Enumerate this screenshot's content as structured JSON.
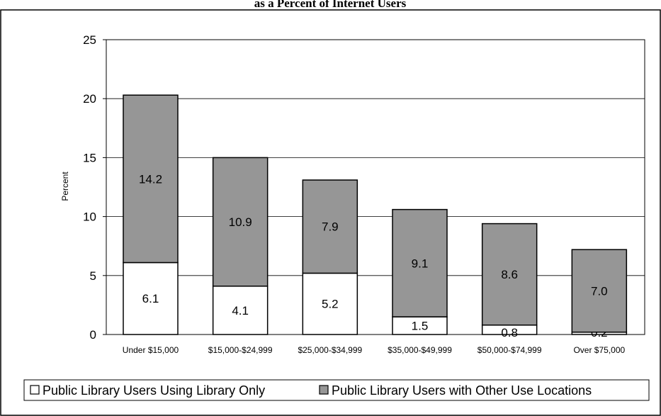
{
  "chart_data": {
    "type": "bar",
    "stacked": true,
    "title": "as a Percent of Internet Users",
    "ylabel": "Percent",
    "xlabel": "",
    "ylim": [
      0,
      25
    ],
    "yticks": [
      "0",
      "5",
      "10",
      "15",
      "20",
      "25"
    ],
    "grid": true,
    "legend_position": "bottom",
    "categories": [
      "Under $15,000",
      "$15,000-$24,999",
      "$25,000-$34,999",
      "$35,000-$49,999",
      "$50,000-$74,999",
      "Over $75,000"
    ],
    "series": [
      {
        "name": "Public Library Users Using Library Only",
        "color": "#ffffff",
        "values": [
          6.1,
          4.1,
          5.2,
          1.5,
          0.8,
          0.2
        ],
        "labels": [
          "6.1",
          "4.1",
          "5.2",
          "1.5",
          "0.8",
          "0.2"
        ]
      },
      {
        "name": "Public Library Users with Other Use Locations",
        "color": "#969696",
        "values": [
          14.2,
          10.9,
          7.9,
          9.1,
          8.6,
          7.0
        ],
        "labels": [
          "14.2",
          "10.9",
          "7.9",
          "9.1",
          "8.6",
          "7.0"
        ]
      }
    ]
  }
}
